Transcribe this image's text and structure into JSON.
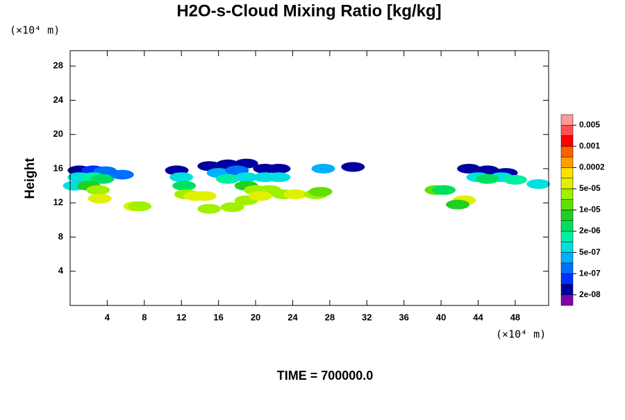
{
  "chart_data": {
    "type": "contour",
    "title": "H2O-s-Cloud Mixing Ratio [kg/kg]",
    "y_label": "Height",
    "y_unit": "(×10⁴ m)",
    "x_unit": "(×10⁴ m)",
    "footer": "TIME = 700000.0",
    "xlim": [
      0,
      51.6
    ],
    "ylim": [
      0,
      29.8
    ],
    "xticks": [
      4,
      8,
      12,
      16,
      20,
      24,
      28,
      32,
      36,
      40,
      44,
      48
    ],
    "yticks": [
      4,
      8,
      12,
      16,
      20,
      24,
      28
    ],
    "colorbar": {
      "scale": "decade-1-2-5",
      "clim": [
        1e-08,
        0.01
      ],
      "colors": [
        "#8000b0",
        "#0000a0",
        "#0030ff",
        "#0070ff",
        "#00b0ff",
        "#00e0e0",
        "#00f0a0",
        "#00e060",
        "#20d020",
        "#60e000",
        "#a0f000",
        "#e0f000",
        "#ffe000",
        "#ffa000",
        "#ff6000",
        "#ff0000",
        "#ff5050",
        "#ff9999"
      ],
      "ticks": [
        {
          "value": 2e-08,
          "label": "2e-08"
        },
        {
          "value": 1e-07,
          "label": "1e-07"
        },
        {
          "value": 5e-07,
          "label": "5e-07"
        },
        {
          "value": 2e-06,
          "label": "2e-06"
        },
        {
          "value": 1e-05,
          "label": "1e-05"
        },
        {
          "value": 5e-05,
          "label": "5e-05"
        },
        {
          "value": 0.0002,
          "label": "0.0002"
        },
        {
          "value": 0.001,
          "label": "0.001"
        },
        {
          "value": 0.005,
          "label": "0.005"
        }
      ]
    },
    "x": [
      1,
      2.5,
      3.8,
      1,
      2.5,
      3.5,
      0.5,
      2,
      3,
      3.2,
      5.6,
      7,
      7.5,
      11.5,
      12,
      12.3,
      12.5,
      13.5,
      14.5,
      15,
      17.5,
      15,
      17,
      19,
      16,
      18,
      17,
      19,
      19,
      21,
      22.5,
      21,
      22.5,
      20,
      21.5,
      23,
      19,
      24.3,
      20.5,
      27.3,
      26.5,
      27,
      30.5,
      39.5,
      40.3,
      42.5,
      41.8,
      43,
      45,
      47,
      44,
      46.5,
      45,
      48,
      50.5
    ],
    "y": [
      15.8,
      15.8,
      15.7,
      15,
      15,
      14.8,
      14,
      14,
      13.5,
      12.5,
      15.3,
      11.6,
      11.6,
      15.8,
      15,
      14,
      13,
      12.8,
      12.8,
      11.3,
      11.5,
      16.3,
      16.5,
      16.6,
      15.5,
      15.8,
      14.8,
      15,
      14,
      16,
      16,
      15,
      15,
      13.5,
      13.5,
      13,
      12.3,
      13,
      12.8,
      16,
      13,
      13.3,
      16.2,
      13.5,
      13.5,
      12.3,
      11.8,
      16,
      15.8,
      15.5,
      15,
      15,
      14.8,
      14.7,
      14.2
    ],
    "values": [
      2e-08,
      5e-08,
      1e-07,
      5e-07,
      1e-06,
      2e-06,
      5e-07,
      5e-06,
      2e-05,
      5e-05,
      1e-07,
      5e-05,
      2e-05,
      2e-08,
      5e-07,
      2e-06,
      2e-05,
      5e-05,
      5e-05,
      2e-05,
      2e-05,
      2e-08,
      2e-08,
      2e-08,
      2e-07,
      1e-07,
      1e-06,
      5e-07,
      5e-06,
      2e-08,
      2e-08,
      5e-07,
      5e-07,
      2e-05,
      2e-05,
      2e-05,
      2e-05,
      5e-05,
      5e-05,
      2e-07,
      2e-05,
      1e-05,
      2e-08,
      1e-05,
      2e-06,
      5e-05,
      5e-06,
      2e-08,
      2e-08,
      2e-08,
      5e-07,
      5e-07,
      2e-06,
      1e-06,
      5e-07
    ]
  }
}
